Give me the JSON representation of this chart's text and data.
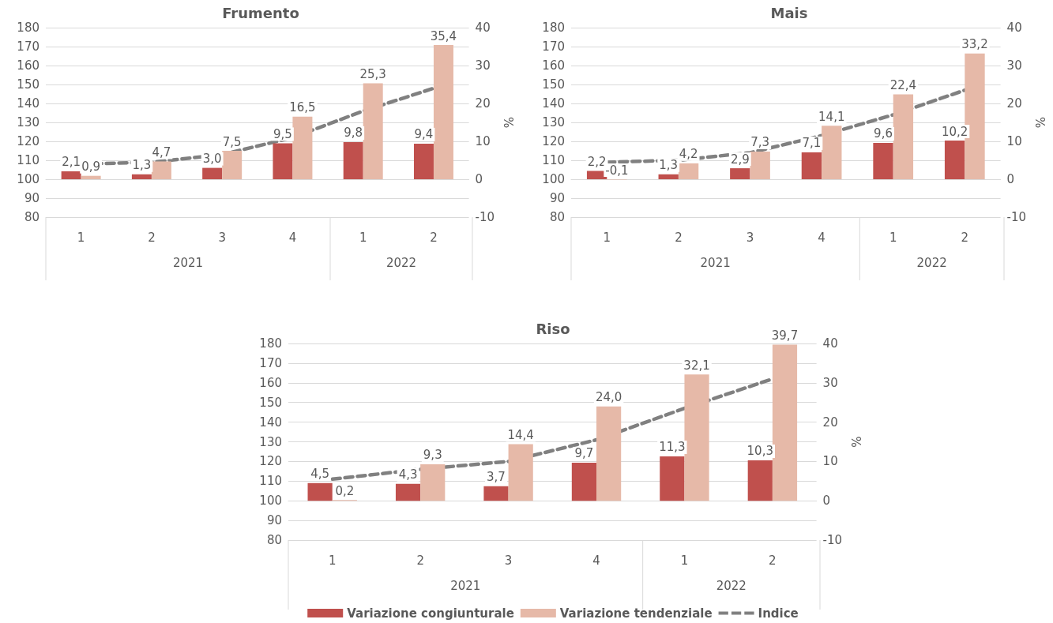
{
  "chart_data": [
    {
      "type": "bar",
      "title": "Frumento",
      "categories": [
        "1",
        "2",
        "3",
        "4",
        "1",
        "2"
      ],
      "annotations": [
        "2021",
        "2022"
      ],
      "ylim": [
        80,
        180
      ],
      "yticks": [
        80,
        90,
        100,
        110,
        120,
        130,
        140,
        150,
        160,
        170,
        180
      ],
      "y2lim": [
        -10,
        40
      ],
      "y2ticks": [
        -10,
        0,
        10,
        20,
        30,
        40
      ],
      "y2label": "%",
      "grid": "y",
      "legend": false,
      "series": [
        {
          "axis": "y2",
          "color": "#c0504d",
          "values": [
            2.1,
            1.3,
            3.0,
            9.5,
            9.8,
            9.4
          ],
          "value_labels": [
            "2,1",
            "1,3",
            "3,0",
            "9,5",
            "9,8",
            "9,4"
          ]
        },
        {
          "axis": "y2",
          "color": "#e6b9a8",
          "values": [
            0.9,
            4.7,
            7.5,
            16.5,
            25.3,
            35.4
          ],
          "value_labels": [
            "0,9",
            "4,7",
            "7,5",
            "16,5",
            "25,3",
            "35,4"
          ]
        },
        {
          "type": "line",
          "color": "#808080",
          "line_style": "dashed",
          "marker": "none",
          "values": [
            108,
            109,
            113,
            122,
            136,
            148
          ]
        }
      ]
    },
    {
      "type": "bar",
      "title": "Mais",
      "categories": [
        "1",
        "2",
        "3",
        "4",
        "1",
        "2"
      ],
      "annotations": [
        "2021",
        "2022"
      ],
      "ylim": [
        80,
        180
      ],
      "yticks": [
        80,
        90,
        100,
        110,
        120,
        130,
        140,
        150,
        160,
        170,
        180
      ],
      "y2lim": [
        -10,
        40
      ],
      "y2ticks": [
        -10,
        0,
        10,
        20,
        30,
        40
      ],
      "y2label": "%",
      "grid": "y",
      "legend": false,
      "series": [
        {
          "axis": "y2",
          "color": "#c0504d",
          "values": [
            2.2,
            1.3,
            2.9,
            7.1,
            9.6,
            10.2
          ],
          "value_labels": [
            "2,2",
            "1,3",
            "2,9",
            "7,1",
            "9,6",
            "10,2"
          ]
        },
        {
          "axis": "y2",
          "color": "#e6b9a8",
          "values": [
            -0.1,
            4.2,
            7.3,
            14.1,
            22.4,
            33.2
          ],
          "value_labels": [
            "-0,1",
            "4,2",
            "7,3",
            "14,1",
            "22,4",
            "33,2"
          ]
        },
        {
          "type": "line",
          "color": "#808080",
          "line_style": "dashed",
          "marker": "none",
          "values": [
            109,
            110,
            114,
            123,
            134,
            147
          ]
        }
      ]
    },
    {
      "type": "bar",
      "title": "Riso",
      "categories": [
        "1",
        "2",
        "3",
        "4",
        "1",
        "2"
      ],
      "annotations": [
        "2021",
        "2022"
      ],
      "ylim": [
        80,
        180
      ],
      "yticks": [
        80,
        90,
        100,
        110,
        120,
        130,
        140,
        150,
        160,
        170,
        180
      ],
      "y2lim": [
        -10,
        40
      ],
      "y2ticks": [
        -10,
        0,
        10,
        20,
        30,
        40
      ],
      "y2label": "%",
      "grid": "y",
      "legend": "bottom",
      "series": [
        {
          "axis": "y2",
          "name": "Variazione congiunturale",
          "color": "#c0504d",
          "values": [
            4.5,
            4.3,
            3.7,
            9.7,
            11.3,
            10.3
          ],
          "value_labels": [
            "4,5",
            "4,3",
            "3,7",
            "9,7",
            "11,3",
            "10,3"
          ]
        },
        {
          "axis": "y2",
          "name": "Variazione tendenziale",
          "color": "#e6b9a8",
          "values": [
            0.2,
            9.3,
            14.4,
            24.0,
            32.1,
            39.7
          ],
          "value_labels": [
            "0,2",
            "9,3",
            "14,4",
            "24,0",
            "32,1",
            "39,7"
          ]
        },
        {
          "type": "line",
          "name": "Indice",
          "color": "#808080",
          "line_style": "dashed",
          "marker": "none",
          "values": [
            111,
            116,
            120,
            131,
            147,
            162
          ]
        }
      ]
    }
  ]
}
